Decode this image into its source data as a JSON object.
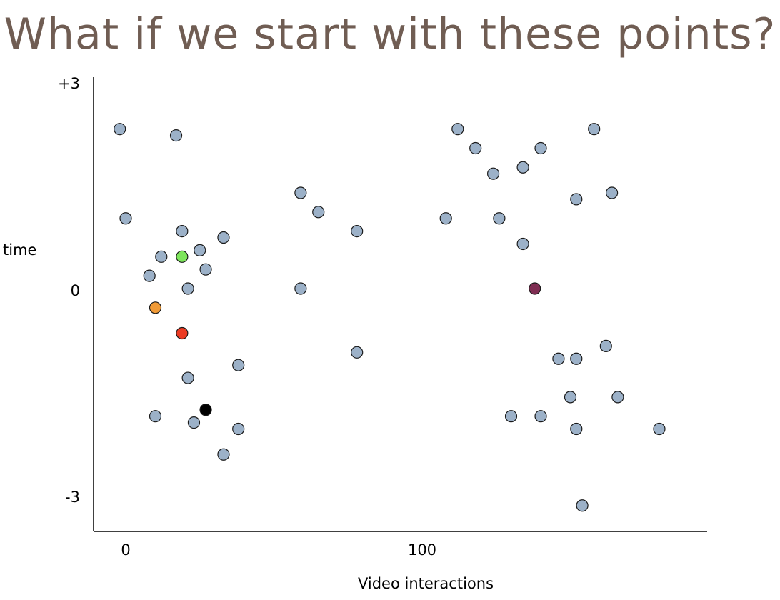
{
  "title": "What if we start with these points?",
  "chart_data": {
    "type": "scatter",
    "xlabel": "Video interactions",
    "ylabel": "time",
    "xlim": [
      -10,
      192
    ],
    "ylim": [
      -3.8,
      3.3
    ],
    "x_ticks": [
      {
        "value": 0,
        "label": "0"
      },
      {
        "value": 100,
        "label": "100"
      }
    ],
    "y_ticks": [
      {
        "value": 3,
        "label": "+3"
      },
      {
        "value": 0,
        "label": "0"
      },
      {
        "value": -3,
        "label": "-3"
      }
    ],
    "grid": false,
    "colors": {
      "default": "#9cb1c8",
      "green": "#7de55b",
      "orange": "#f09a36",
      "red": "#ec3b23",
      "black": "#000000",
      "purple": "#7e2d52"
    },
    "points": [
      {
        "x": -2,
        "y": 2.5
      },
      {
        "x": 17,
        "y": 2.4
      },
      {
        "x": 0,
        "y": 1.1
      },
      {
        "x": 19,
        "y": 0.9
      },
      {
        "x": 33,
        "y": 0.8
      },
      {
        "x": 25,
        "y": 0.6
      },
      {
        "x": 12,
        "y": 0.5
      },
      {
        "x": 19,
        "y": 0.5,
        "color": "green"
      },
      {
        "x": 27,
        "y": 0.3
      },
      {
        "x": 8,
        "y": 0.2
      },
      {
        "x": 21,
        "y": 0.0
      },
      {
        "x": 10,
        "y": -0.3,
        "color": "orange"
      },
      {
        "x": 19,
        "y": -0.7,
        "color": "red"
      },
      {
        "x": 38,
        "y": -1.2
      },
      {
        "x": 21,
        "y": -1.4
      },
      {
        "x": 27,
        "y": -1.9,
        "color": "black"
      },
      {
        "x": 10,
        "y": -2.0
      },
      {
        "x": 23,
        "y": -2.1
      },
      {
        "x": 38,
        "y": -2.2
      },
      {
        "x": 33,
        "y": -2.6
      },
      {
        "x": 59,
        "y": 1.5
      },
      {
        "x": 65,
        "y": 1.2
      },
      {
        "x": 78,
        "y": 0.9
      },
      {
        "x": 59,
        "y": 0.0
      },
      {
        "x": 78,
        "y": -1.0
      },
      {
        "x": 112,
        "y": 2.5
      },
      {
        "x": 118,
        "y": 2.2
      },
      {
        "x": 124,
        "y": 1.8
      },
      {
        "x": 108,
        "y": 1.1
      },
      {
        "x": 126,
        "y": 1.1
      },
      {
        "x": 134,
        "y": 1.9
      },
      {
        "x": 140,
        "y": 2.2
      },
      {
        "x": 158,
        "y": 2.5
      },
      {
        "x": 152,
        "y": 1.4
      },
      {
        "x": 164,
        "y": 1.5
      },
      {
        "x": 134,
        "y": 0.7
      },
      {
        "x": 138,
        "y": 0.0,
        "color": "purple"
      },
      {
        "x": 162,
        "y": -0.9
      },
      {
        "x": 146,
        "y": -1.1
      },
      {
        "x": 152,
        "y": -1.1
      },
      {
        "x": 150,
        "y": -1.7
      },
      {
        "x": 166,
        "y": -1.7
      },
      {
        "x": 130,
        "y": -2.0
      },
      {
        "x": 140,
        "y": -2.0
      },
      {
        "x": 152,
        "y": -2.2
      },
      {
        "x": 180,
        "y": -2.2
      },
      {
        "x": 154,
        "y": -3.4
      }
    ]
  }
}
